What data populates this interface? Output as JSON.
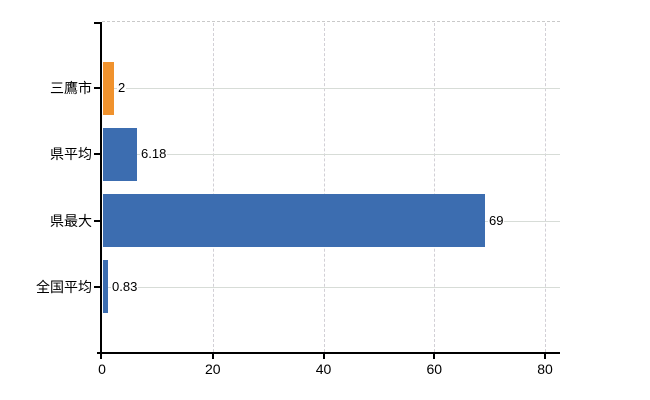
{
  "chart_data": {
    "type": "bar",
    "orientation": "horizontal",
    "title": "",
    "categories": [
      "三鷹市",
      "県平均",
      "県最大",
      "全国平均"
    ],
    "values": [
      2,
      6.18,
      69,
      0.83
    ],
    "value_labels": [
      "2",
      "6.18",
      "69",
      "0.83"
    ],
    "bar_colors": [
      "#f0922d",
      "#3c6db0",
      "#3c6db0",
      "#3c6db0"
    ],
    "highlight_color": "#f0922d",
    "default_bar_color": "#3c6db0",
    "xticks": [
      0,
      20,
      40,
      60,
      80
    ],
    "xtick_labels": [
      "0",
      "20",
      "40",
      "60",
      "80"
    ],
    "xlim": [
      0,
      82.8
    ],
    "xlabel": "",
    "ylabel": "",
    "legend": null,
    "grid": "vertical-dashed-and-horizontal-solid",
    "grid_color": "#d7dcd7",
    "axis_color": "#000000",
    "frame_top_style": "dashed",
    "frame_top_color": "#c9c9c9",
    "text_color": "#000000",
    "background_color": "#ffffff",
    "value_labels_shown": true
  }
}
